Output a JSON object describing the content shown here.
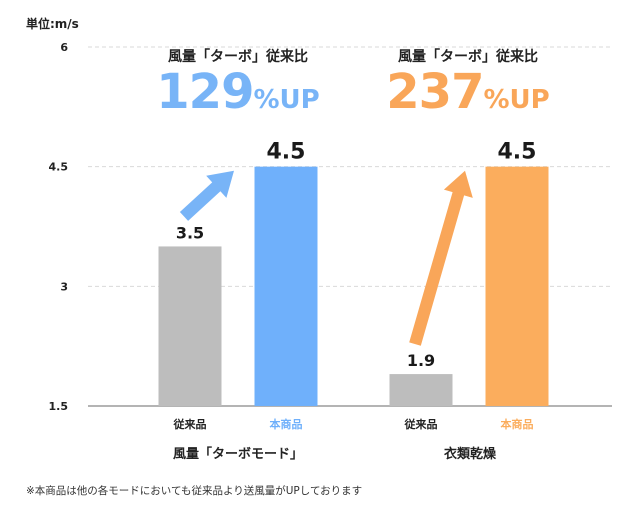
{
  "unit_label": "単位:m/s",
  "footnote": "※本商品は他の各モードにおいても従来品より送風量がUPしております",
  "colors": {
    "old": "#bdbdbd",
    "new_turbo": "#6fb0fb",
    "new_dry": "#fbad5d",
    "accent_blue": "#78b4f7",
    "accent_orange": "#f9a659",
    "axis": "#888888",
    "grid": "#d9d9d9"
  },
  "chart_data": {
    "type": "bar",
    "ylim": [
      1.5,
      6
    ],
    "yticks": [
      "1.5",
      "3",
      "4.5",
      "6"
    ],
    "grid": true,
    "groups": [
      {
        "name": "風量「ターボモード」",
        "headline_label": "風量「ターボ」従来比",
        "headline_value": "129",
        "headline_suffix": "%UP",
        "accent": "blue",
        "bars": [
          {
            "label": "従来品",
            "value": 3.5,
            "value_label": "3.5",
            "kind": "old"
          },
          {
            "label": "本商品",
            "value": 4.5,
            "value_label": "4.5",
            "kind": "new_turbo"
          }
        ]
      },
      {
        "name": "衣類乾燥",
        "headline_label": "風量「ターボ」従来比",
        "headline_value": "237",
        "headline_suffix": "%UP",
        "accent": "orange",
        "bars": [
          {
            "label": "従来品",
            "value": 1.9,
            "value_label": "1.9",
            "kind": "old"
          },
          {
            "label": "本商品",
            "value": 4.5,
            "value_label": "4.5",
            "kind": "new_dry"
          }
        ]
      }
    ]
  }
}
